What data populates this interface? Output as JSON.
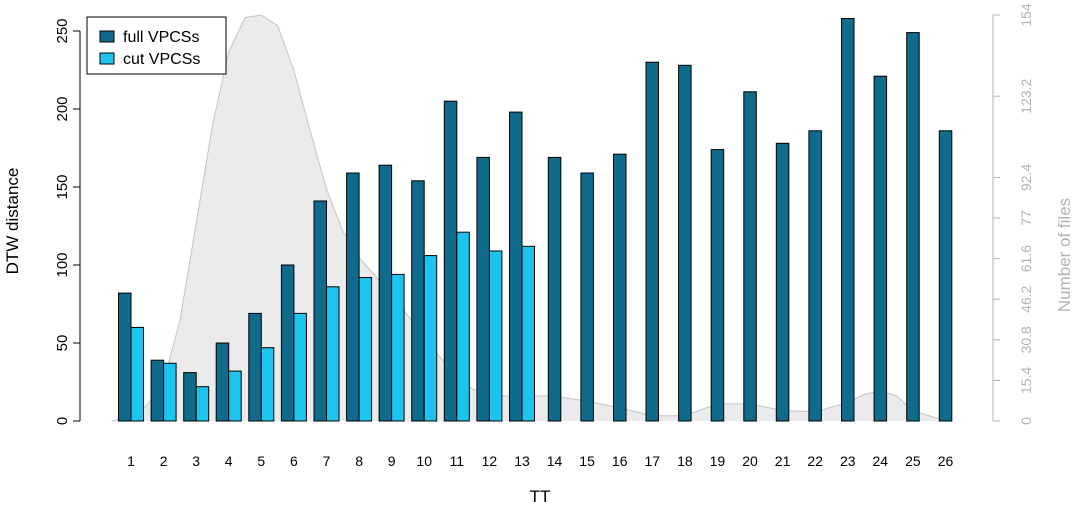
{
  "colors": {
    "full": "#0f6b8c",
    "cut": "#1ec4f0",
    "density_fill": "#ebebeb",
    "density_stroke": "#c4c4c4",
    "right_axis": "#b3b3b3"
  },
  "chart_data": {
    "type": "bar",
    "xlabel": "TT",
    "ylabel": "DTW distance",
    "ylabel_right": "Number of files",
    "ylim": [
      0,
      260
    ],
    "yticks": [
      "0",
      "50",
      "100",
      "150",
      "200",
      "250"
    ],
    "right_ylim": [
      0,
      154
    ],
    "right_ticks": [
      "0",
      "15.4",
      "30.8",
      "46.2",
      "61.6",
      "77",
      "92.4",
      "123.2",
      "154"
    ],
    "legend_position": "top-left",
    "categories": [
      "1",
      "2",
      "3",
      "4",
      "5",
      "6",
      "7",
      "8",
      "9",
      "10",
      "11",
      "12",
      "13",
      "14",
      "15",
      "16",
      "17",
      "18",
      "19",
      "20",
      "21",
      "22",
      "23",
      "24",
      "25",
      "26"
    ],
    "series": [
      {
        "name": "full VPCSs",
        "values": [
          82,
          39,
          31,
          50,
          69,
          100,
          141,
          159,
          164,
          154,
          205,
          169,
          198,
          169,
          159,
          171,
          230,
          228,
          174,
          211,
          178,
          186,
          258,
          221,
          249,
          186
        ]
      },
      {
        "name": "cut VPCSs",
        "values": [
          60,
          37,
          22,
          32,
          47,
          69,
          86,
          92,
          94,
          106,
          121,
          109,
          112,
          null,
          null,
          null,
          null,
          null,
          null,
          null,
          null,
          null,
          null,
          null,
          null,
          null
        ]
      }
    ],
    "density": {
      "x": [
        0.4,
        1,
        1.5,
        2,
        2.5,
        3,
        3.5,
        4,
        4.5,
        5,
        5.5,
        6,
        6.5,
        7,
        7.5,
        8,
        8.5,
        9,
        9.5,
        10,
        10.5,
        11,
        11.5,
        12,
        12.5,
        13,
        13.5,
        14,
        15,
        16,
        17,
        18,
        19,
        20,
        21,
        22,
        23,
        23.5,
        24,
        24.5,
        25,
        26
      ],
      "y": [
        0,
        1.5,
        6,
        15,
        38,
        75,
        112,
        140,
        153,
        154,
        150,
        133,
        110,
        88,
        72,
        62,
        55,
        48,
        40,
        32,
        24,
        17,
        12,
        10,
        9.5,
        9.5,
        9.5,
        9.5,
        7.5,
        5,
        2,
        2,
        6.5,
        6.5,
        4,
        3.5,
        7,
        10,
        11.5,
        9.5,
        4,
        0
      ]
    }
  }
}
